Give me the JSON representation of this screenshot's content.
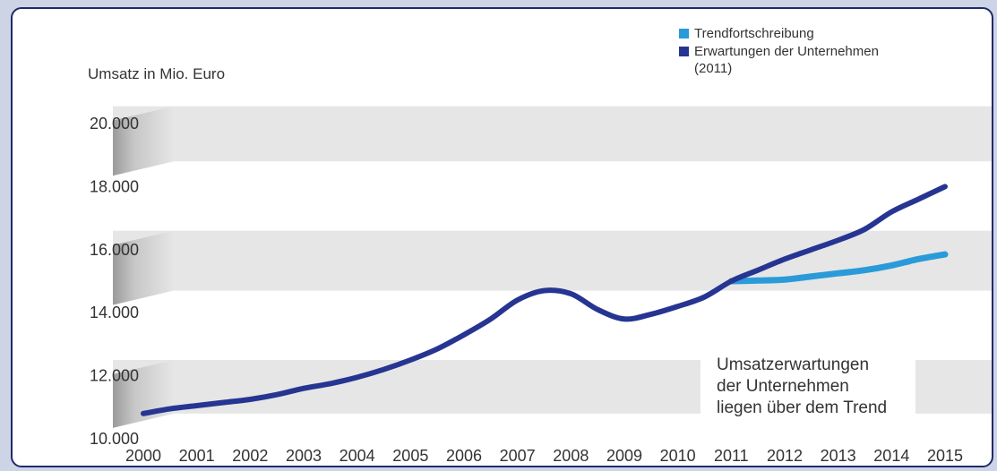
{
  "chart_data": {
    "type": "line",
    "ylabel": "Umsatz in Mio. Euro",
    "x": [
      "2000",
      "2001",
      "2002",
      "2003",
      "2004",
      "2005",
      "2006",
      "2007",
      "2008",
      "2009",
      "2010",
      "2011",
      "2012",
      "2013",
      "2014",
      "2015"
    ],
    "ylim": [
      10000,
      20000
    ],
    "yticks": [
      10000,
      12000,
      14000,
      16000,
      18000,
      20000
    ],
    "ytick_labels": [
      "10.000",
      "12.000",
      "14.000",
      "16.000",
      "18.000",
      "20.000"
    ],
    "series": [
      {
        "name": "Erwartungen der Unternehmen (2011)",
        "color": "#263592",
        "x": [
          2000,
          2000.5,
          2001,
          2001.5,
          2002,
          2002.5,
          2003,
          2003.5,
          2004,
          2004.5,
          2005,
          2005.5,
          2006,
          2006.5,
          2007,
          2007.5,
          2008,
          2008.5,
          2009,
          2009.5,
          2010,
          2010.5,
          2011,
          2011.5,
          2012,
          2012.5,
          2013,
          2013.5,
          2014,
          2014.5,
          2015
        ],
        "values": [
          10800,
          10950,
          11050,
          11150,
          11250,
          11400,
          11600,
          11750,
          11950,
          12200,
          12500,
          12850,
          13300,
          13800,
          14400,
          14700,
          14600,
          14100,
          13800,
          13950,
          14200,
          14500,
          15000,
          15350,
          15700,
          16000,
          16300,
          16650,
          17200,
          17600,
          18000
        ]
      },
      {
        "name": "Trendfortschreibung",
        "color": "#2a9bd8",
        "x": [
          2011,
          2011.5,
          2012,
          2012.5,
          2013,
          2013.5,
          2014,
          2014.5,
          2015
        ],
        "values": [
          15000,
          15020,
          15050,
          15150,
          15250,
          15350,
          15500,
          15700,
          15850
        ]
      }
    ],
    "legend": {
      "position": "top-right",
      "entries": [
        "Trendfortschreibung",
        "Erwartungen der Unternehmen",
        "(2011)"
      ]
    },
    "annotation": [
      "Umsatzerwartungen",
      "der Unternehmen",
      "liegen über dem Trend"
    ]
  },
  "colors": {
    "frame_border": "#1f2a6b",
    "band": "#e6e6e6",
    "band_shadow": "#b9b9b9",
    "background_outer": "#cdd4e6"
  }
}
